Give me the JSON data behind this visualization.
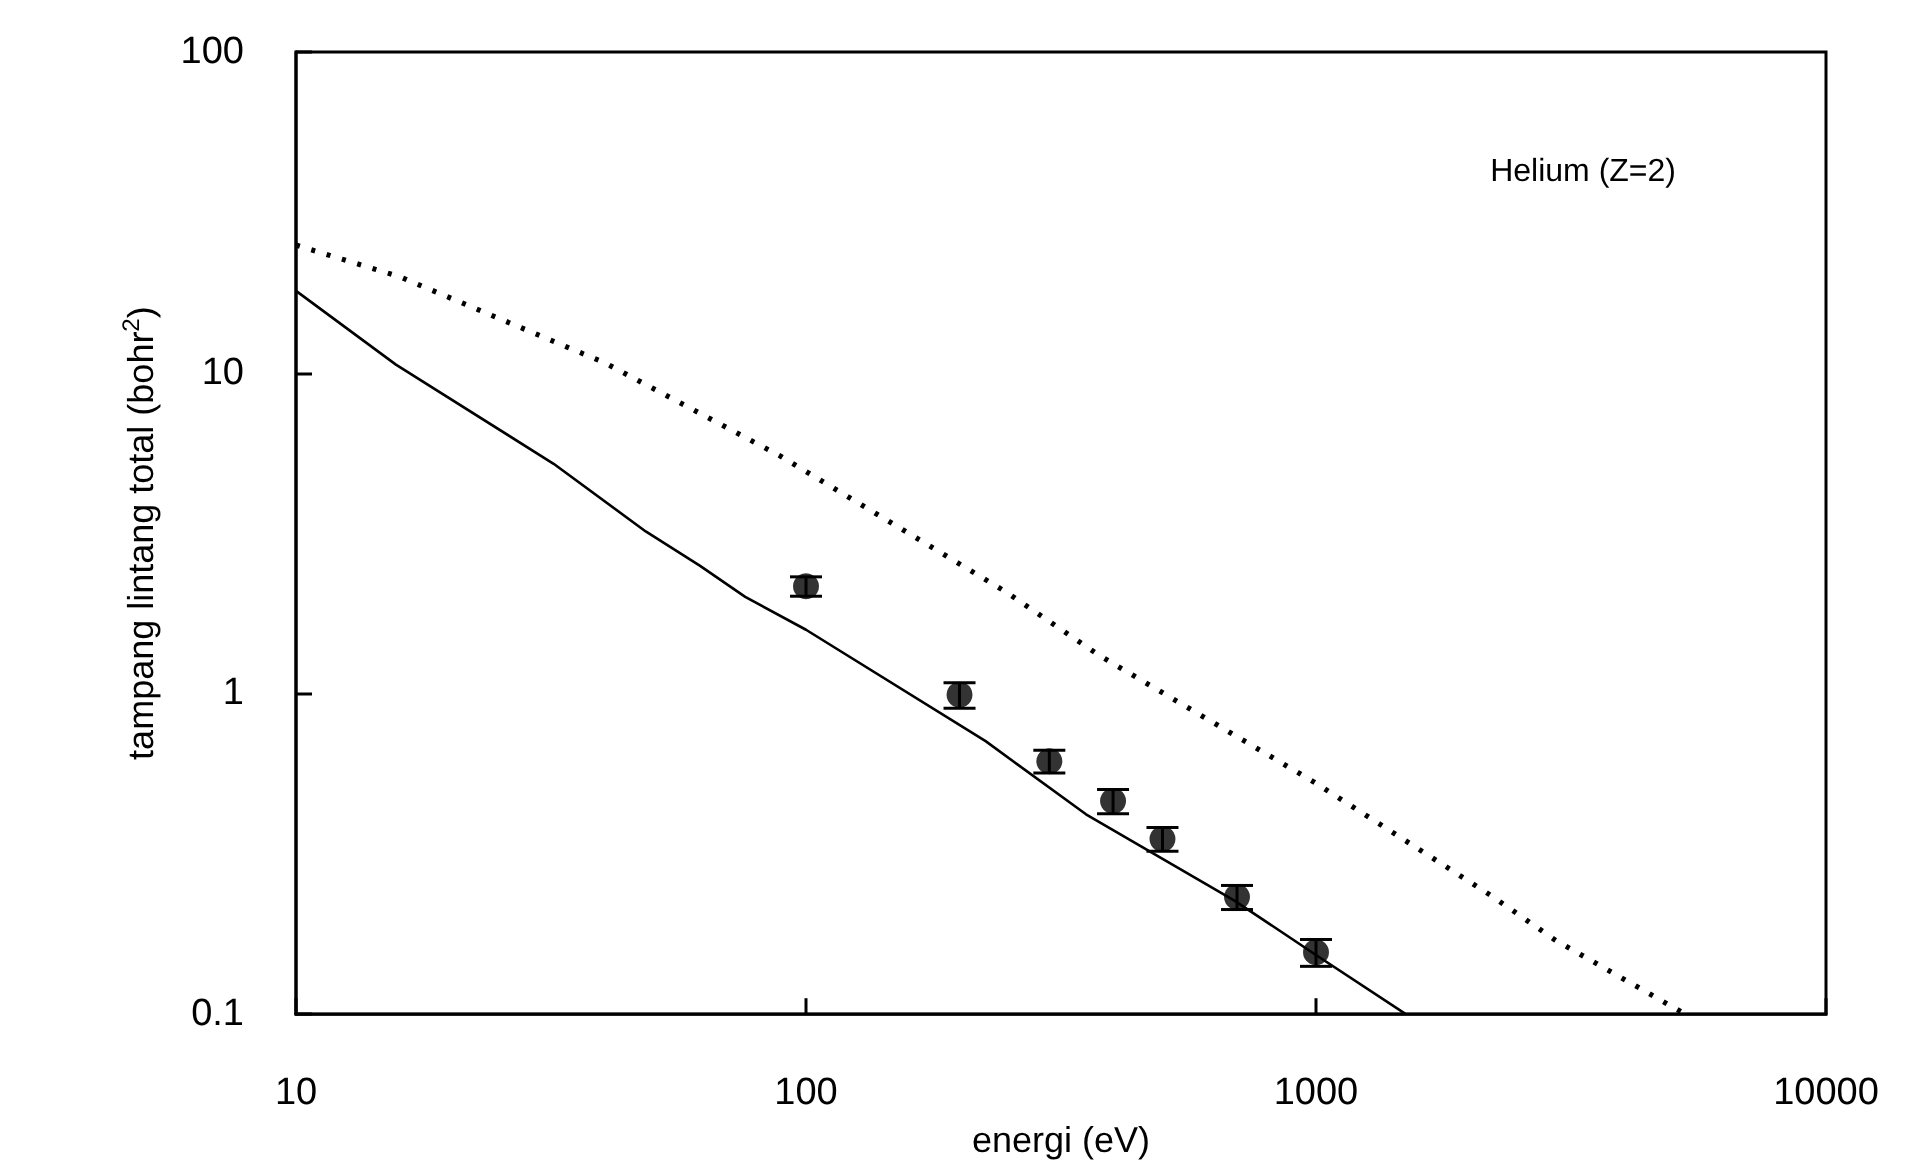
{
  "chart_data": {
    "type": "scatter",
    "xlabel": "energi (eV)",
    "ylabel": "tampang lintang total (bohr$^{2}$)",
    "annotations": [
      "Helium (Z=2)"
    ],
    "log": "xy",
    "xlim": [
      10,
      10000
    ],
    "xticks": [
      10,
      100,
      1000,
      10000
    ],
    "ylim": [
      0.1,
      100
    ],
    "yticks": [
      0.1,
      1,
      10,
      100
    ],
    "grid": false,
    "series": [
      {
        "type": "scatter",
        "color": "#000000",
        "marker": "circle",
        "x": [
          100,
          200,
          300,
          400,
          500,
          700,
          1000
        ],
        "values": [
          2.16,
          0.99,
          0.615,
          0.462,
          0.352,
          0.232,
          0.156
        ],
        "errors": [
          0.15,
          0.09,
          0.05,
          0.04,
          0.03,
          0.02,
          0.015
        ]
      },
      {
        "type": "line",
        "color": "#000000",
        "line_style": "solid",
        "marker": "none",
        "x": [
          10,
          15.7,
          32,
          48.5,
          62,
          76,
          100,
          225,
          354,
          692,
          1000,
          1500
        ],
        "values": [
          18,
          10.6,
          5.2,
          3.2,
          2.5,
          2.0,
          1.58,
          0.71,
          0.42,
          0.226,
          0.153,
          0.1
        ]
      },
      {
        "type": "line",
        "color": "#000000",
        "line_style": "dotted",
        "marker": "none",
        "x": [
          10,
          16,
          40.5,
          89,
          247,
          377,
          990,
          2190,
          2950,
          5300
        ],
        "values": [
          25,
          19.9,
          10.7,
          5.5,
          2.07,
          1.31,
          0.53,
          0.236,
          0.17,
          0.1
        ]
      }
    ]
  }
}
